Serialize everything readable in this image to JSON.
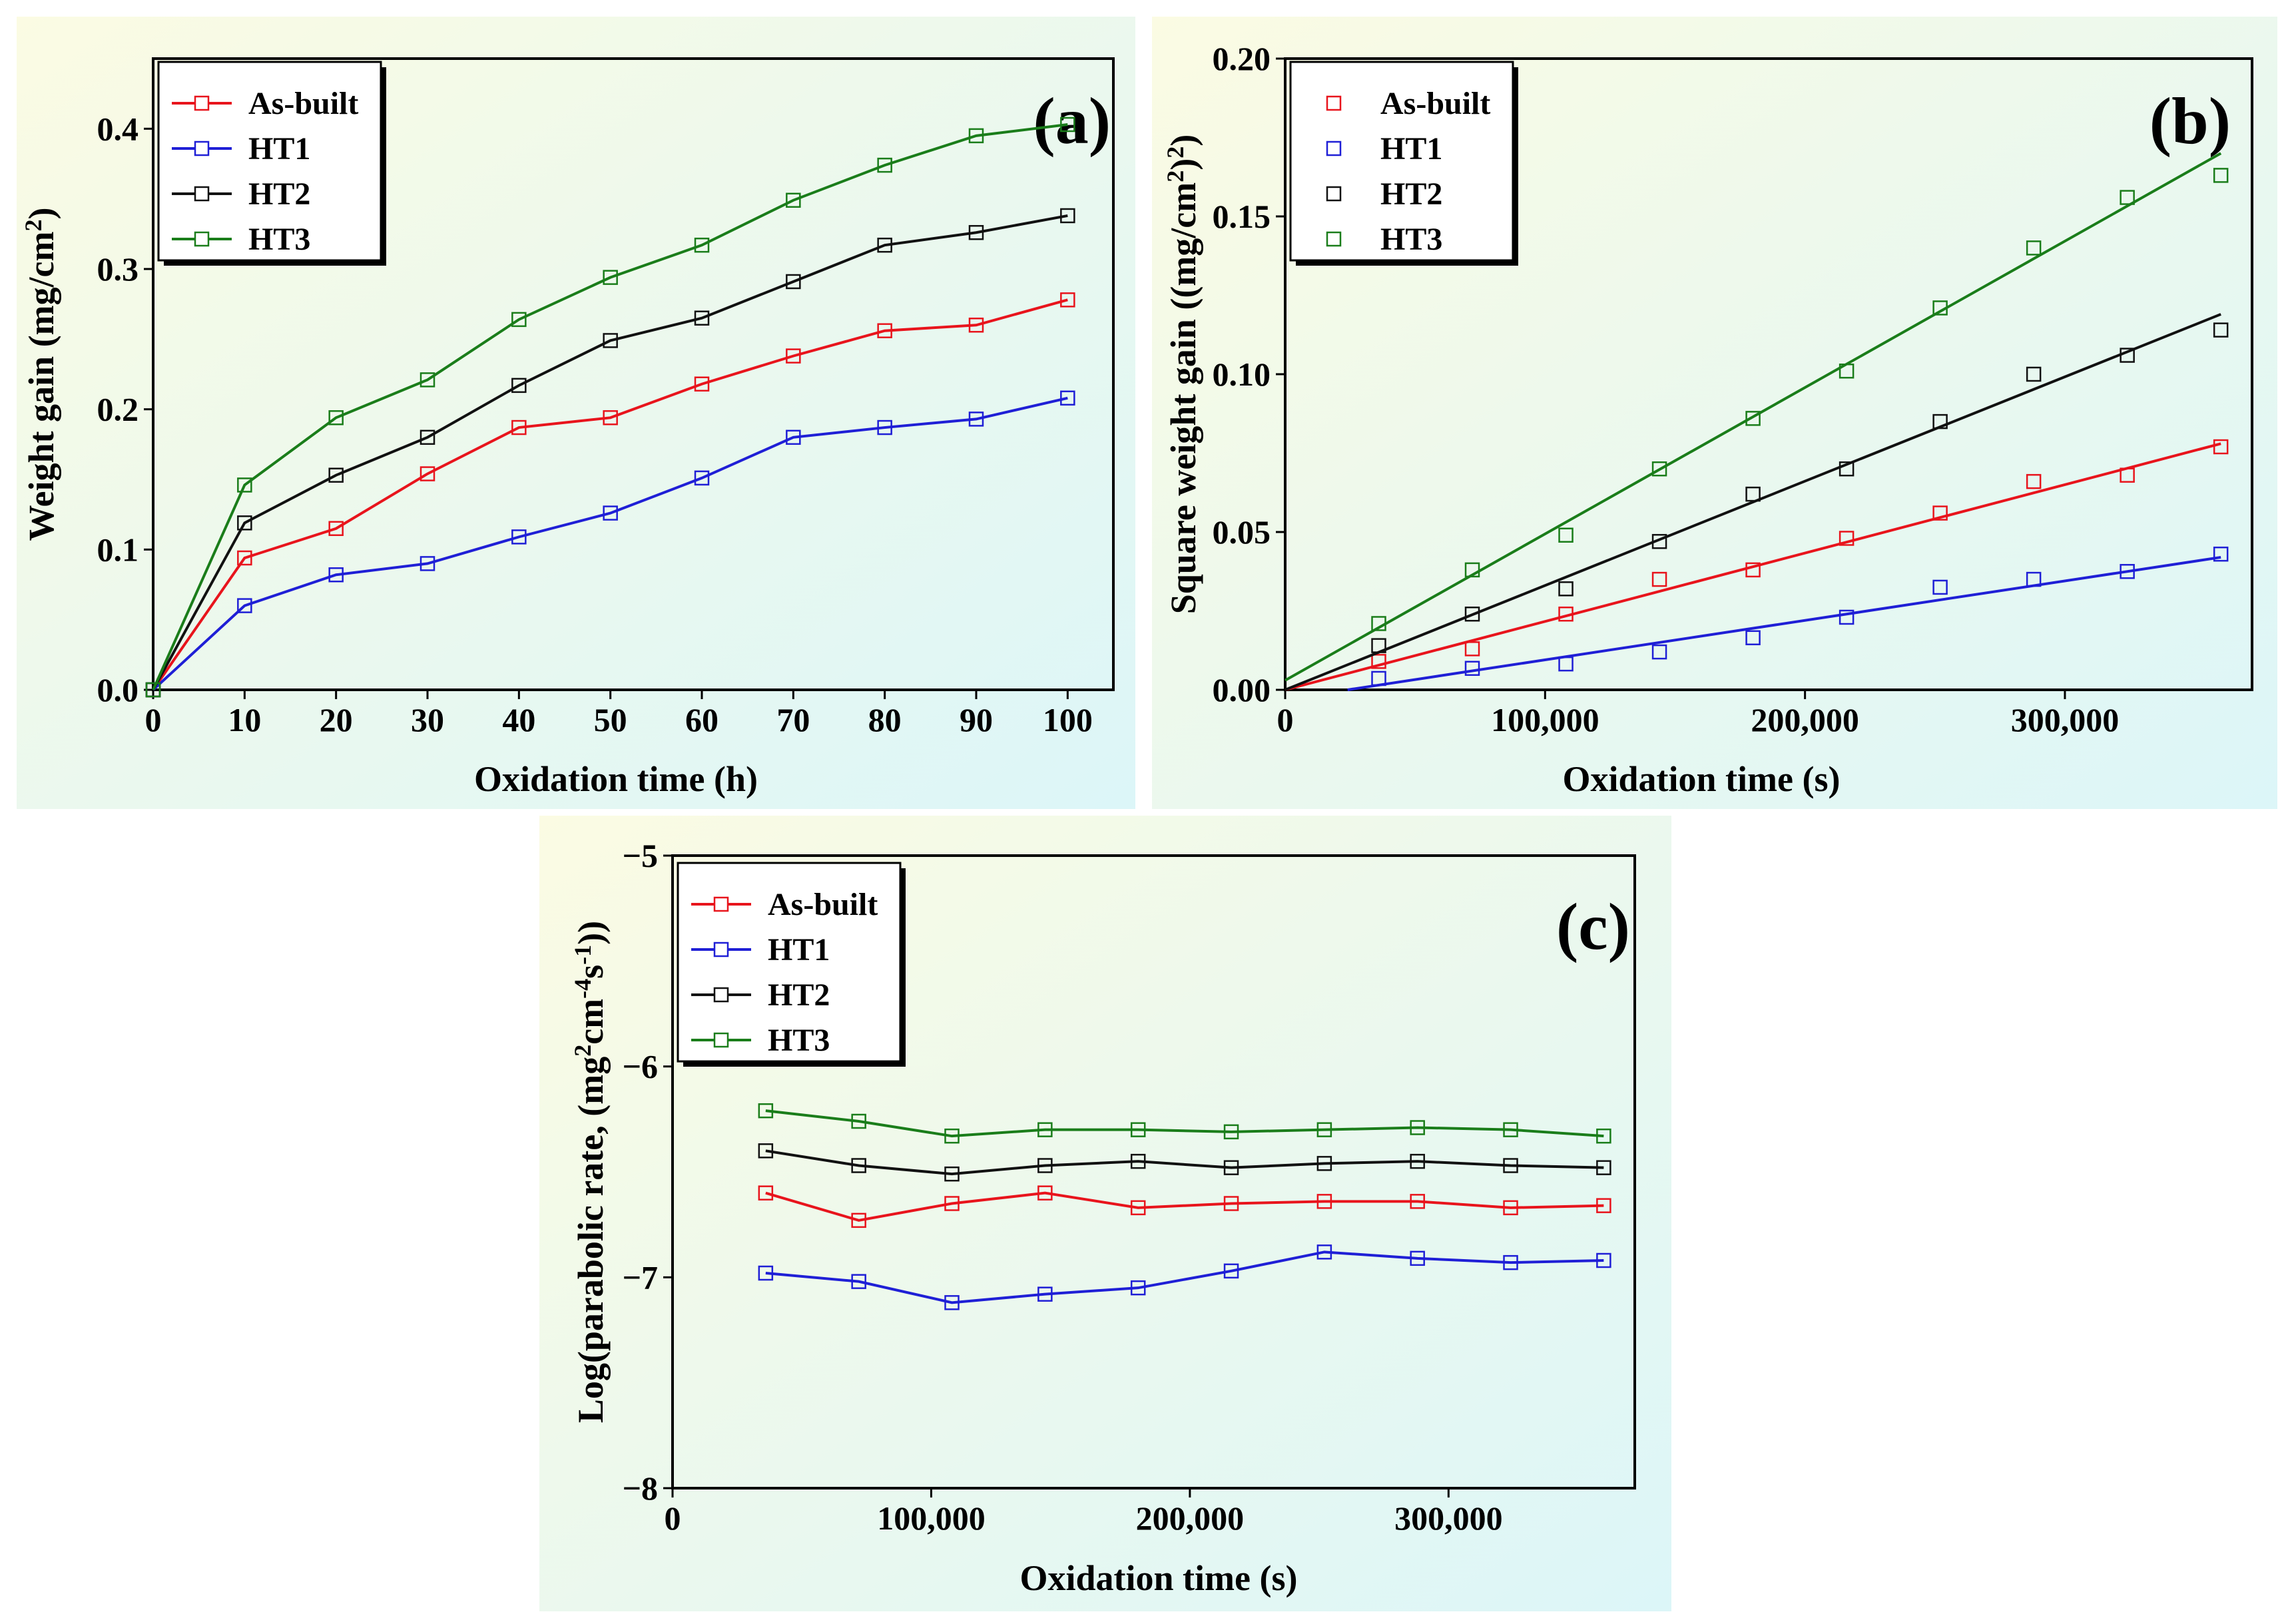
{
  "figure": {
    "panels": [
      {
        "id": "a",
        "tag": "(a)"
      },
      {
        "id": "b",
        "tag": "(b)"
      },
      {
        "id": "c",
        "tag": "(c)"
      }
    ]
  },
  "chart_data": [
    {
      "panel": "(a)",
      "type": "line",
      "title": "",
      "xlabel": "Oxidation time (h)",
      "ylabel": "Weight gain (mg/cm²)",
      "xlim": [
        0,
        105
      ],
      "ylim": [
        0,
        0.45
      ],
      "xticks": [
        0,
        10,
        20,
        30,
        40,
        50,
        60,
        70,
        80,
        90,
        100
      ],
      "xtick_labels": [
        "0",
        "10",
        "20",
        "30",
        "40",
        "50",
        "60",
        "70",
        "80",
        "90",
        "100"
      ],
      "yticks": [
        0,
        0.1,
        0.2,
        0.3,
        0.4
      ],
      "ytick_labels": [
        "0.0",
        "0.1",
        "0.2",
        "0.3",
        "0.4"
      ],
      "grid": false,
      "legend_position": "top-left",
      "marker": "open-square",
      "x": [
        0,
        10,
        20,
        30,
        40,
        50,
        60,
        70,
        80,
        90,
        100
      ],
      "series": [
        {
          "name": "As-built",
          "color": "#e8141c",
          "values": [
            0,
            0.094,
            0.115,
            0.154,
            0.187,
            0.194,
            0.218,
            0.238,
            0.256,
            0.26,
            0.278
          ]
        },
        {
          "name": "HT1",
          "color": "#1f1fd6",
          "values": [
            0,
            0.06,
            0.082,
            0.09,
            0.109,
            0.126,
            0.151,
            0.18,
            0.187,
            0.193,
            0.208
          ]
        },
        {
          "name": "HT2",
          "color": "#111111",
          "values": [
            0,
            0.119,
            0.153,
            0.18,
            0.217,
            0.249,
            0.265,
            0.291,
            0.317,
            0.326,
            0.338
          ]
        },
        {
          "name": "HT3",
          "color": "#1a7d1a",
          "values": [
            0,
            0.146,
            0.194,
            0.221,
            0.264,
            0.294,
            0.317,
            0.349,
            0.374,
            0.395,
            0.403
          ]
        }
      ]
    },
    {
      "panel": "(b)",
      "type": "scatter",
      "title": "",
      "xlabel": "Oxidation time (s)",
      "ylabel": "Square weight gain ((mg/cm²)²)",
      "xlim": [
        0,
        372000
      ],
      "ylim": [
        0,
        0.2
      ],
      "xticks": [
        0,
        100000,
        200000,
        300000
      ],
      "xtick_labels": [
        "0",
        "100,000",
        "200,000",
        "300,000"
      ],
      "yticks": [
        0,
        0.05,
        0.1,
        0.15,
        0.2
      ],
      "ytick_labels": [
        "0.00",
        "0.05",
        "0.10",
        "0.15",
        "0.20"
      ],
      "grid": false,
      "legend_position": "top-left",
      "marker": "open-square",
      "x": [
        36000,
        72000,
        108000,
        144000,
        180000,
        216000,
        252000,
        288000,
        324000,
        360000
      ],
      "series": [
        {
          "name": "As-built",
          "color": "#e8141c",
          "values": [
            0.009,
            0.013,
            0.024,
            0.035,
            0.038,
            0.048,
            0.056,
            0.066,
            0.068,
            0.077
          ],
          "fit": [
            [
              0,
              0.0
            ],
            [
              360000,
              0.078
            ]
          ]
        },
        {
          "name": "HT1",
          "color": "#1f1fd6",
          "values": [
            0.0036,
            0.0068,
            0.0082,
            0.012,
            0.0165,
            0.023,
            0.0325,
            0.035,
            0.0375,
            0.043
          ],
          "fit": [
            [
              0,
              -0.003
            ],
            [
              360000,
              0.042
            ]
          ]
        },
        {
          "name": "HT2",
          "color": "#111111",
          "values": [
            0.014,
            0.024,
            0.032,
            0.047,
            0.062,
            0.07,
            0.085,
            0.1,
            0.106,
            0.114
          ],
          "fit": [
            [
              0,
              0.0
            ],
            [
              360000,
              0.119
            ]
          ]
        },
        {
          "name": "HT3",
          "color": "#1a7d1a",
          "values": [
            0.021,
            0.038,
            0.049,
            0.07,
            0.086,
            0.101,
            0.121,
            0.14,
            0.156,
            0.163
          ],
          "fit": [
            [
              0,
              0.003
            ],
            [
              360000,
              0.17
            ]
          ]
        }
      ]
    },
    {
      "panel": "(c)",
      "type": "line",
      "title": "",
      "xlabel": "Oxidation time (s)",
      "ylabel": "Log(parabolic rate, (mg²cm⁻⁴s⁻¹))",
      "xlim": [
        0,
        372000
      ],
      "ylim": [
        -8,
        -5
      ],
      "xticks": [
        0,
        100000,
        200000,
        300000
      ],
      "xtick_labels": [
        "0",
        "100,000",
        "200,000",
        "300,000"
      ],
      "yticks": [
        -8,
        -7,
        -6,
        -5
      ],
      "ytick_labels": [
        "−8",
        "−7",
        "−6",
        "−5"
      ],
      "grid": false,
      "legend_position": "top-left",
      "marker": "open-square",
      "x": [
        36000,
        72000,
        108000,
        144000,
        180000,
        216000,
        252000,
        288000,
        324000,
        360000
      ],
      "series": [
        {
          "name": "As-built",
          "color": "#e8141c",
          "values": [
            -6.6,
            -6.73,
            -6.65,
            -6.6,
            -6.67,
            -6.65,
            -6.64,
            -6.64,
            -6.67,
            -6.66
          ]
        },
        {
          "name": "HT1",
          "color": "#1f1fd6",
          "values": [
            -6.98,
            -7.02,
            -7.12,
            -7.08,
            -7.05,
            -6.97,
            -6.88,
            -6.91,
            -6.93,
            -6.92
          ]
        },
        {
          "name": "HT2",
          "color": "#111111",
          "values": [
            -6.4,
            -6.47,
            -6.51,
            -6.47,
            -6.45,
            -6.48,
            -6.46,
            -6.45,
            -6.47,
            -6.48
          ]
        },
        {
          "name": "HT3",
          "color": "#1a7d1a",
          "values": [
            -6.21,
            -6.26,
            -6.33,
            -6.3,
            -6.3,
            -6.31,
            -6.3,
            -6.29,
            -6.3,
            -6.33
          ]
        }
      ]
    }
  ]
}
